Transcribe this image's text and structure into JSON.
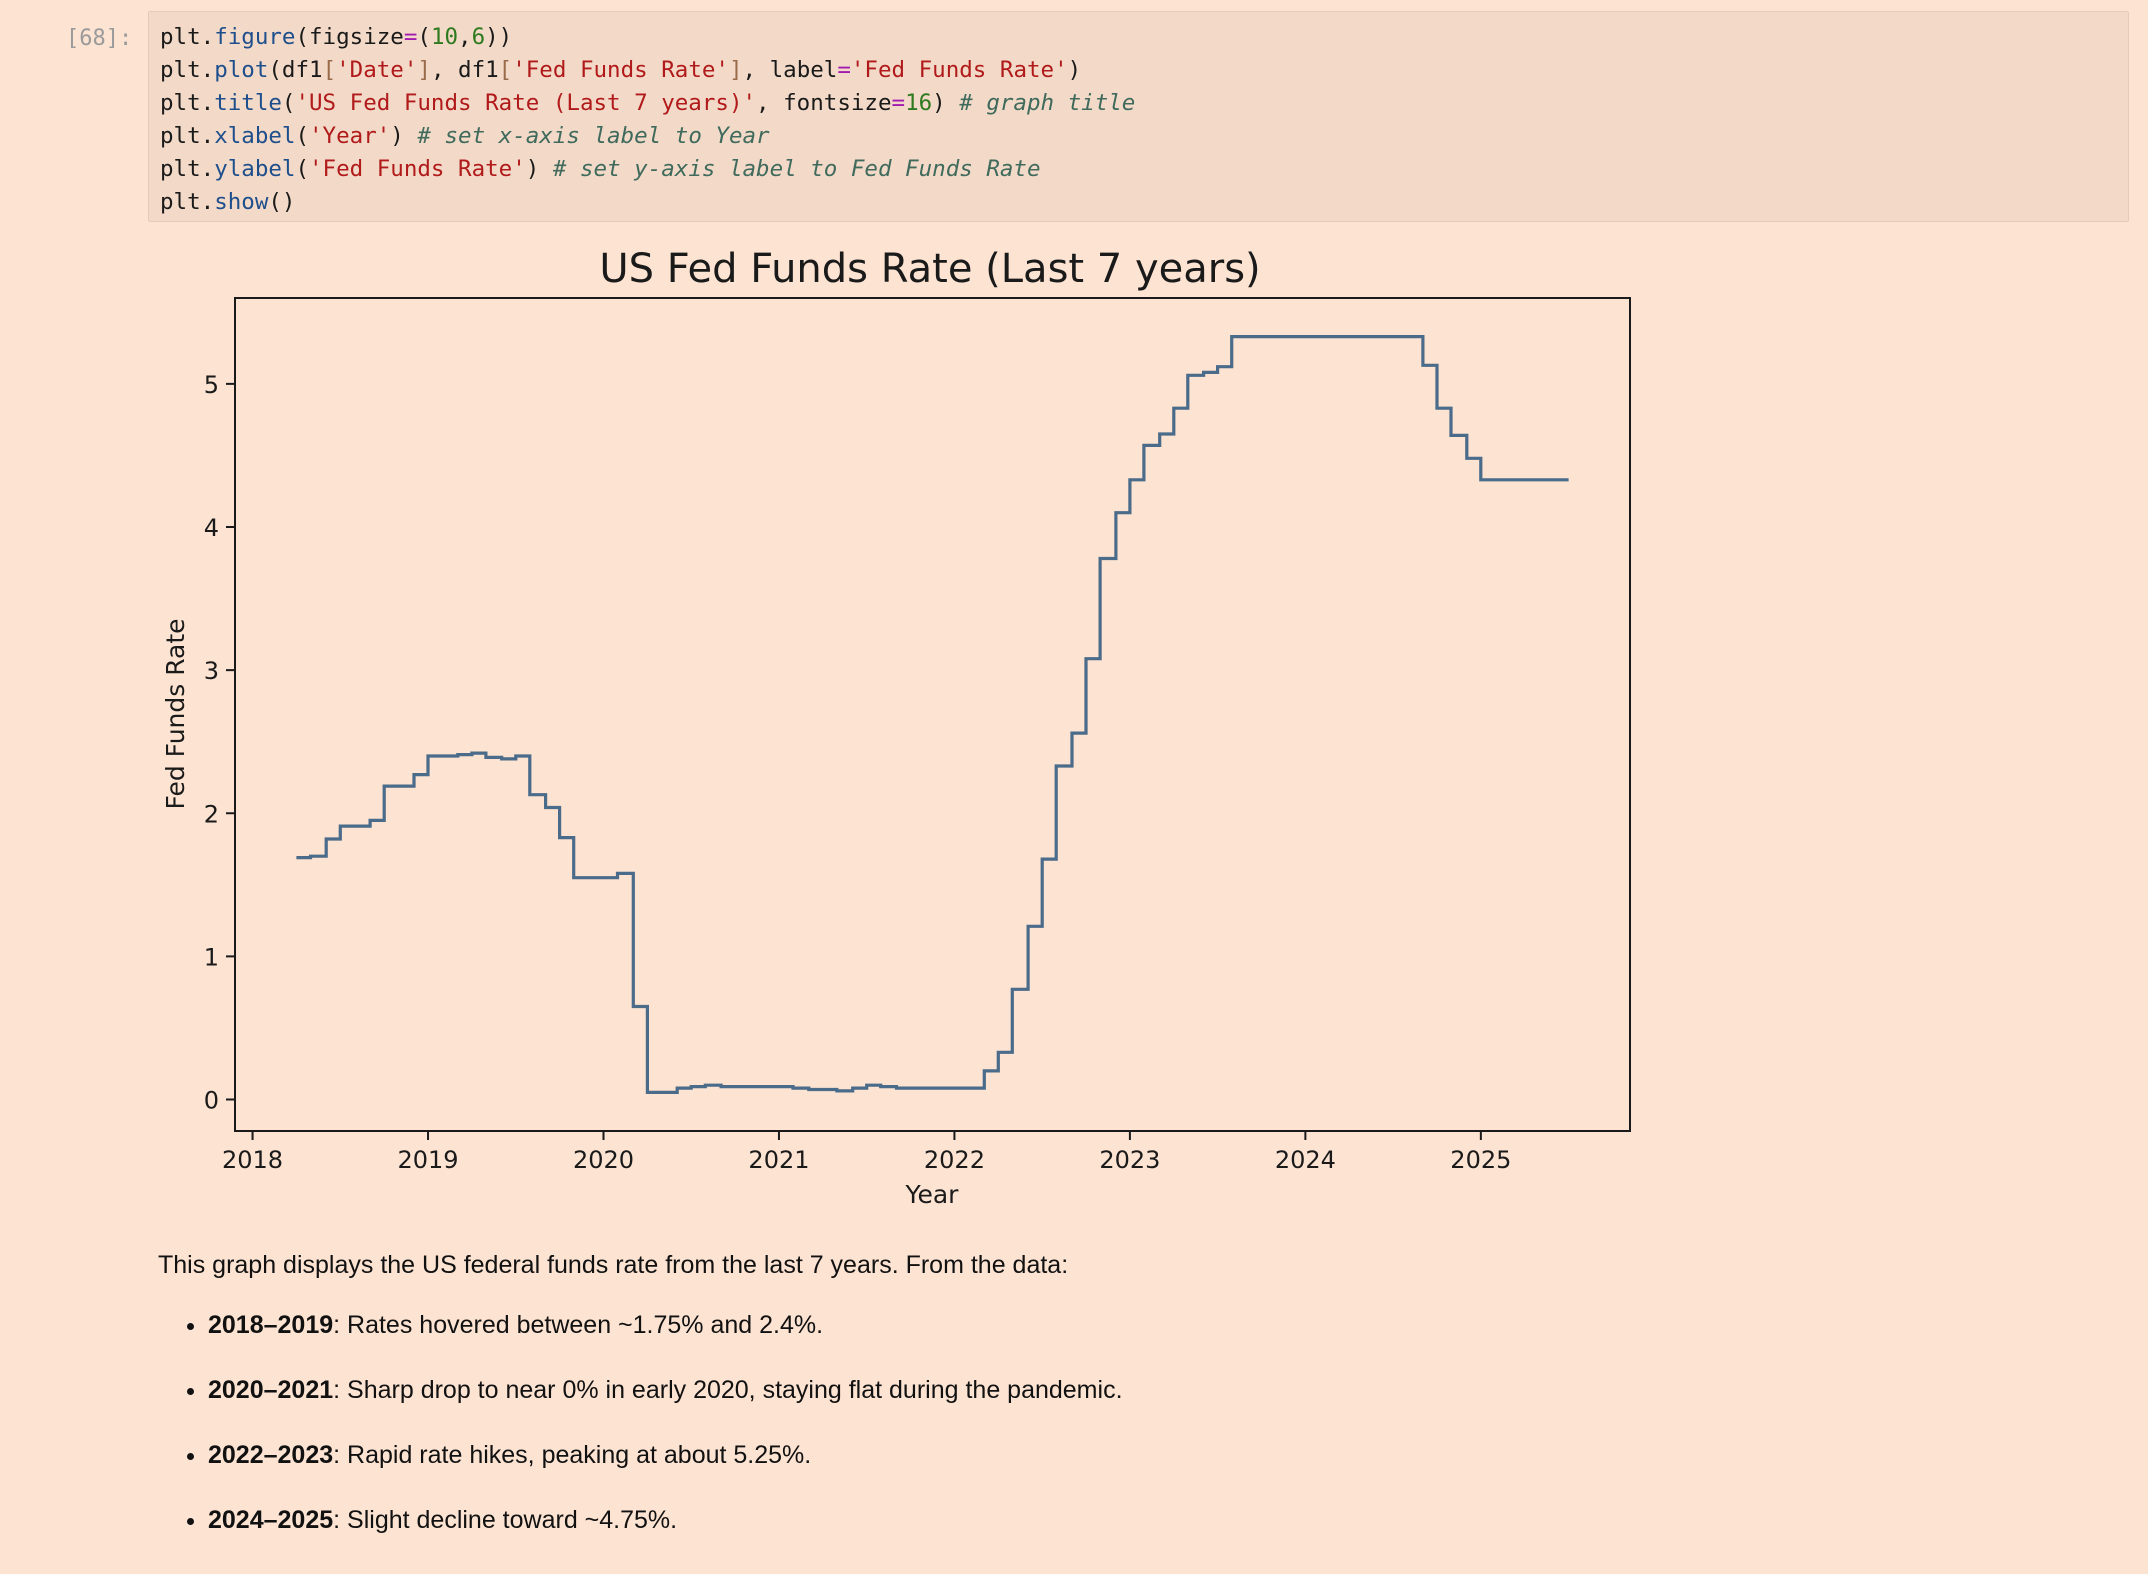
{
  "cell": {
    "prompt": "[68]:",
    "code": [
      [
        {
          "t": "plt.",
          "c": "tx"
        },
        {
          "t": "figure",
          "c": "fn"
        },
        {
          "t": "(figsize",
          "c": "tx"
        },
        {
          "t": "=",
          "c": "op"
        },
        {
          "t": "(",
          "c": "tx"
        },
        {
          "t": "10",
          "c": "num"
        },
        {
          "t": ",",
          "c": "tx"
        },
        {
          "t": "6",
          "c": "num"
        },
        {
          "t": "))",
          "c": "tx"
        }
      ],
      [
        {
          "t": "plt.",
          "c": "tx"
        },
        {
          "t": "plot",
          "c": "fn"
        },
        {
          "t": "(df1",
          "c": "tx"
        },
        {
          "t": "[",
          "c": "br"
        },
        {
          "t": "'Date'",
          "c": "str"
        },
        {
          "t": "]",
          "c": "br"
        },
        {
          "t": ", df1",
          "c": "tx"
        },
        {
          "t": "[",
          "c": "br"
        },
        {
          "t": "'Fed Funds Rate'",
          "c": "str"
        },
        {
          "t": "]",
          "c": "br"
        },
        {
          "t": ", label",
          "c": "tx"
        },
        {
          "t": "=",
          "c": "op"
        },
        {
          "t": "'Fed Funds Rate'",
          "c": "str"
        },
        {
          "t": ")",
          "c": "tx"
        }
      ],
      [
        {
          "t": "plt.",
          "c": "tx"
        },
        {
          "t": "title",
          "c": "fn"
        },
        {
          "t": "(",
          "c": "tx"
        },
        {
          "t": "'US Fed Funds Rate (Last 7 years)'",
          "c": "str"
        },
        {
          "t": ", fontsize",
          "c": "tx"
        },
        {
          "t": "=",
          "c": "op"
        },
        {
          "t": "16",
          "c": "num"
        },
        {
          "t": ") ",
          "c": "tx"
        },
        {
          "t": "# graph title",
          "c": "cm"
        }
      ],
      [
        {
          "t": "plt.",
          "c": "tx"
        },
        {
          "t": "xlabel",
          "c": "fn"
        },
        {
          "t": "(",
          "c": "tx"
        },
        {
          "t": "'Year'",
          "c": "str"
        },
        {
          "t": ") ",
          "c": "tx"
        },
        {
          "t": "# set x-axis label to Year",
          "c": "cm"
        }
      ],
      [
        {
          "t": "plt.",
          "c": "tx"
        },
        {
          "t": "ylabel",
          "c": "fn"
        },
        {
          "t": "(",
          "c": "tx"
        },
        {
          "t": "'Fed Funds Rate'",
          "c": "str"
        },
        {
          "t": ") ",
          "c": "tx"
        },
        {
          "t": "# set y-axis label to Fed Funds Rate",
          "c": "cm"
        }
      ],
      [
        {
          "t": "plt.",
          "c": "tx"
        },
        {
          "t": "show",
          "c": "fn"
        },
        {
          "t": "()",
          "c": "tx"
        }
      ]
    ]
  },
  "chart_data": {
    "type": "line",
    "title": "US Fed Funds Rate (Last 7 years)",
    "xlabel": "Year",
    "ylabel": "Fed Funds Rate",
    "xlim": [
      2017.9,
      2025.85
    ],
    "ylim": [
      -0.22,
      5.6
    ],
    "x_ticks": [
      2018,
      2019,
      2020,
      2021,
      2022,
      2023,
      2024,
      2025
    ],
    "x_tick_labels": [
      "2018",
      "2019",
      "2020",
      "2021",
      "2022",
      "2023",
      "2024",
      "2025"
    ],
    "y_ticks": [
      0,
      1,
      2,
      3,
      4,
      5
    ],
    "y_tick_labels": [
      "0",
      "1",
      "2",
      "3",
      "4",
      "5"
    ],
    "grid": false,
    "line_color": "#4a6b8a",
    "series": [
      {
        "name": "Fed Funds Rate",
        "step": "post",
        "x": [
          2018.25,
          2018.33,
          2018.42,
          2018.5,
          2018.67,
          2018.75,
          2018.92,
          2019.0,
          2019.17,
          2019.25,
          2019.33,
          2019.42,
          2019.5,
          2019.58,
          2019.67,
          2019.75,
          2019.83,
          2020.08,
          2020.17,
          2020.25,
          2020.42,
          2020.5,
          2020.58,
          2020.67,
          2021.08,
          2021.17,
          2021.33,
          2021.42,
          2021.5,
          2021.58,
          2021.67,
          2022.17,
          2022.25,
          2022.33,
          2022.42,
          2022.5,
          2022.58,
          2022.67,
          2022.75,
          2022.83,
          2022.92,
          2023.0,
          2023.08,
          2023.17,
          2023.25,
          2023.33,
          2023.42,
          2023.5,
          2023.58,
          2024.17,
          2024.5,
          2024.67,
          2024.75,
          2024.83,
          2024.92,
          2025.0,
          2025.5
        ],
        "y": [
          1.69,
          1.7,
          1.82,
          1.91,
          1.95,
          2.19,
          2.27,
          2.4,
          2.41,
          2.42,
          2.39,
          2.38,
          2.4,
          2.13,
          2.04,
          1.83,
          1.55,
          1.58,
          0.65,
          0.05,
          0.08,
          0.09,
          0.1,
          0.09,
          0.08,
          0.07,
          0.06,
          0.08,
          0.1,
          0.09,
          0.08,
          0.2,
          0.33,
          0.77,
          1.21,
          1.68,
          2.33,
          2.56,
          3.08,
          3.78,
          4.1,
          4.33,
          4.57,
          4.65,
          4.83,
          5.06,
          5.08,
          5.12,
          5.33,
          5.33,
          5.33,
          5.13,
          4.83,
          4.64,
          4.48,
          4.33,
          4.33
        ]
      }
    ]
  },
  "explanation": {
    "intro": "This graph displays the US federal funds rate from the last 7 years. From the data:",
    "bullets": [
      {
        "period": "2018–2019",
        "text": ": Rates hovered between ~1.75% and 2.4%."
      },
      {
        "period": "2020–2021",
        "text": ": Sharp drop to near 0% in early 2020, staying flat during the pandemic."
      },
      {
        "period": "2022–2023",
        "text": ": Rapid rate hikes, peaking at about 5.25%."
      },
      {
        "period": "2024–2025",
        "text": ": Slight decline toward ~4.75%."
      }
    ]
  }
}
